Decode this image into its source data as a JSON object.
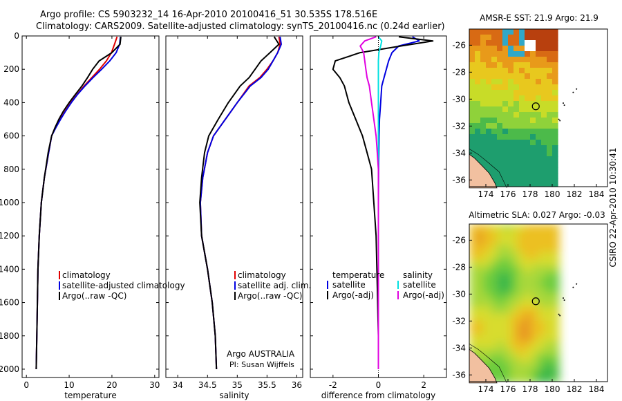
{
  "header": {
    "title_line1": "Argo profile: CS 5903232_14 16-Apr-2010 20100416_51 30.535S 178.516E",
    "title_line2": "Climatology: CARS2009. Satellite-adjusted climatology: synTS_20100416.nc (0.24d earlier)"
  },
  "side_label": "CSIRO 22-Apr-2010 10:30:41",
  "colors": {
    "climatology": "#e00000",
    "satellite": "#0000e0",
    "argo": "#000000",
    "salinity_satellite": "#00e0e0",
    "salinity_argo": "#e000e0",
    "land": "#f2c0a0"
  },
  "chart_data": [
    {
      "type": "line",
      "xlabel": "temperature",
      "ylabel": "",
      "xlim": [
        -1,
        31
      ],
      "ylim": [
        2050,
        0
      ],
      "xticks": [
        0,
        10,
        20,
        30
      ],
      "yticks": [
        0,
        200,
        400,
        600,
        800,
        1000,
        1200,
        1400,
        1600,
        1800,
        2000
      ],
      "legend": {
        "placement": "lower-right",
        "entries": [
          "climatology",
          "satellite-adjusted climatology",
          "Argo(..raw -QC)"
        ]
      },
      "series": [
        {
          "name": "climatology",
          "x": [
            21.2,
            20.6,
            19.9,
            18.7,
            17.1,
            15.3,
            13.5,
            11.9,
            10.4,
            9.1,
            7.9,
            6.8,
            5.9,
            5.2,
            4.2,
            3.5,
            3.0,
            2.7,
            2.5,
            2.3
          ],
          "y": [
            5,
            50,
            100,
            150,
            200,
            250,
            300,
            350,
            400,
            450,
            500,
            550,
            600,
            700,
            850,
            1000,
            1200,
            1400,
            1700,
            2000
          ]
        },
        {
          "name": "satellite-adjusted climatology",
          "x": [
            22.0,
            21.8,
            21.0,
            19.5,
            17.6,
            15.6,
            13.7,
            12.0,
            10.5,
            9.2,
            8.0,
            6.9,
            5.9,
            5.2,
            4.2,
            3.5,
            3.0,
            2.7,
            2.5,
            2.3
          ],
          "y": [
            5,
            50,
            100,
            150,
            200,
            250,
            300,
            350,
            400,
            450,
            500,
            550,
            600,
            700,
            850,
            1000,
            1200,
            1400,
            1700,
            2000
          ]
        },
        {
          "name": "Argo(..raw -QC)",
          "x": [
            22.1,
            21.9,
            20.0,
            17.0,
            15.5,
            14.3,
            13.0,
            11.5,
            10.0,
            8.7,
            7.6,
            6.7,
            5.9,
            5.1,
            4.2,
            3.5,
            3.0,
            2.7,
            2.5,
            2.3
          ],
          "y": [
            5,
            50,
            100,
            150,
            200,
            250,
            300,
            350,
            400,
            450,
            500,
            550,
            600,
            700,
            850,
            1000,
            1200,
            1400,
            1700,
            2000
          ]
        }
      ]
    },
    {
      "type": "line",
      "xlabel": "salinity",
      "ylabel": "",
      "xlim": [
        33.8,
        36.1
      ],
      "ylim": [
        2050,
        0
      ],
      "xticks": [
        34,
        34.5,
        35,
        35.5,
        36
      ],
      "yticks": [
        0,
        200,
        400,
        600,
        800,
        1000,
        1200,
        1400,
        1600,
        1800,
        2000
      ],
      "annotation_line1": "Argo AUSTRALIA",
      "annotation_line2": "PI: Susan Wijffels",
      "legend": {
        "placement": "lower-right",
        "entries": [
          "climatology",
          "satellite adj. clim.",
          "Argo(..raw -QC)"
        ]
      },
      "series": [
        {
          "name": "climatology",
          "x": [
            35.7,
            35.72,
            35.68,
            35.6,
            35.5,
            35.38,
            35.2,
            35.0,
            34.8,
            34.6,
            34.5,
            34.42,
            34.38,
            34.4,
            34.5,
            34.58,
            34.63,
            34.65
          ],
          "y": [
            5,
            50,
            100,
            150,
            200,
            250,
            300,
            400,
            500,
            600,
            700,
            850,
            1000,
            1200,
            1400,
            1600,
            1800,
            2000
          ]
        },
        {
          "name": "satellite adj. clim.",
          "x": [
            35.72,
            35.74,
            35.68,
            35.6,
            35.52,
            35.4,
            35.22,
            35.0,
            34.8,
            34.6,
            34.5,
            34.42,
            34.38,
            34.4,
            34.5,
            34.58,
            34.63,
            34.65
          ],
          "y": [
            5,
            50,
            100,
            150,
            200,
            250,
            300,
            400,
            500,
            600,
            700,
            850,
            1000,
            1200,
            1400,
            1600,
            1800,
            2000
          ]
        },
        {
          "name": "Argo(..raw -QC)",
          "x": [
            35.62,
            35.7,
            35.55,
            35.4,
            35.3,
            35.2,
            35.05,
            34.85,
            34.68,
            34.52,
            34.45,
            34.4,
            34.37,
            34.4,
            34.5,
            34.58,
            34.63,
            34.65
          ],
          "y": [
            5,
            50,
            100,
            150,
            200,
            250,
            300,
            400,
            500,
            600,
            700,
            850,
            1000,
            1200,
            1400,
            1600,
            1800,
            2000
          ]
        }
      ]
    },
    {
      "type": "line",
      "xlabel": "difference from climatology",
      "ylabel": "",
      "xlim": [
        -3,
        3
      ],
      "ylim": [
        2050,
        0
      ],
      "xticks": [
        -2,
        0,
        2
      ],
      "yticks": [
        0,
        200,
        400,
        600,
        800,
        1000,
        1200,
        1400,
        1600,
        1800,
        2000
      ],
      "legend": {
        "placement": "lower",
        "temperature_header": "temperature",
        "salinity_header": "salinity",
        "entries": [
          "satellite",
          "Argo(-adj)",
          "satellite",
          "Argo(-adj)"
        ]
      },
      "series": [
        {
          "name": "temperature satellite",
          "x": [
            1.5,
            1.8,
            0.9,
            0.6,
            0.45,
            0.35,
            0.25,
            0.15,
            0.1,
            0.05,
            0.03,
            0.02,
            0.01,
            0.0,
            0.0,
            0.0,
            0.0,
            0.0
          ],
          "y": [
            5,
            30,
            60,
            100,
            150,
            200,
            250,
            300,
            400,
            500,
            600,
            700,
            800,
            1000,
            1200,
            1500,
            1800,
            2000
          ]
        },
        {
          "name": "temperature Argo(-adj)",
          "x": [
            0.9,
            2.4,
            1.0,
            -0.8,
            -1.9,
            -2.0,
            -1.7,
            -1.5,
            -1.3,
            -1.0,
            -0.7,
            -0.5,
            -0.3,
            -0.2,
            -0.1,
            -0.05,
            0.0,
            0.0
          ],
          "y": [
            5,
            30,
            60,
            100,
            150,
            200,
            250,
            300,
            400,
            500,
            600,
            700,
            800,
            1000,
            1200,
            1500,
            1800,
            2000
          ]
        },
        {
          "name": "salinity satellite",
          "x": [
            0.0,
            0.15,
            0.1,
            0.02,
            0.0,
            0.0,
            0.0,
            0.0,
            0.0,
            0.0,
            0.0,
            0.0,
            0.0,
            0.0,
            0.0,
            0.0,
            0.0,
            0.0
          ],
          "y": [
            5,
            30,
            60,
            100,
            150,
            200,
            250,
            300,
            400,
            500,
            600,
            700,
            800,
            1000,
            1200,
            1500,
            1800,
            2000
          ]
        },
        {
          "name": "salinity Argo(-adj)",
          "x": [
            -0.1,
            -0.6,
            -0.8,
            -0.65,
            -0.6,
            -0.55,
            -0.5,
            -0.4,
            -0.3,
            -0.2,
            -0.1,
            -0.05,
            0.0,
            0.0,
            0.0,
            0.0,
            0.0,
            0.0
          ],
          "y": [
            5,
            30,
            60,
            100,
            150,
            200,
            250,
            300,
            400,
            500,
            600,
            700,
            800,
            1000,
            1200,
            1500,
            1800,
            2000
          ]
        }
      ]
    },
    {
      "type": "heatmap",
      "title": "AMSR-E SST: 21.9  Argo: 21.9",
      "xlim": [
        172.5,
        185
      ],
      "ylim": [
        -36.5,
        -24.8
      ],
      "xticks": [
        174,
        176,
        178,
        180,
        182,
        184
      ],
      "yticks": [
        -26,
        -28,
        -30,
        -32,
        -34,
        -36
      ],
      "data_extent_east": 180.3,
      "argo_position": [
        178.516,
        -30.535
      ]
    },
    {
      "type": "heatmap",
      "title": "Altimetric SLA: 0.027  Argo: -0.03",
      "xlim": [
        172.5,
        185
      ],
      "ylim": [
        -36.5,
        -24.8
      ],
      "xticks": [
        174,
        176,
        178,
        180,
        182,
        184
      ],
      "yticks": [
        -26,
        -28,
        -30,
        -32,
        -34,
        -36
      ],
      "data_extent_east": 180.3,
      "argo_position": [
        178.516,
        -30.535
      ]
    }
  ]
}
